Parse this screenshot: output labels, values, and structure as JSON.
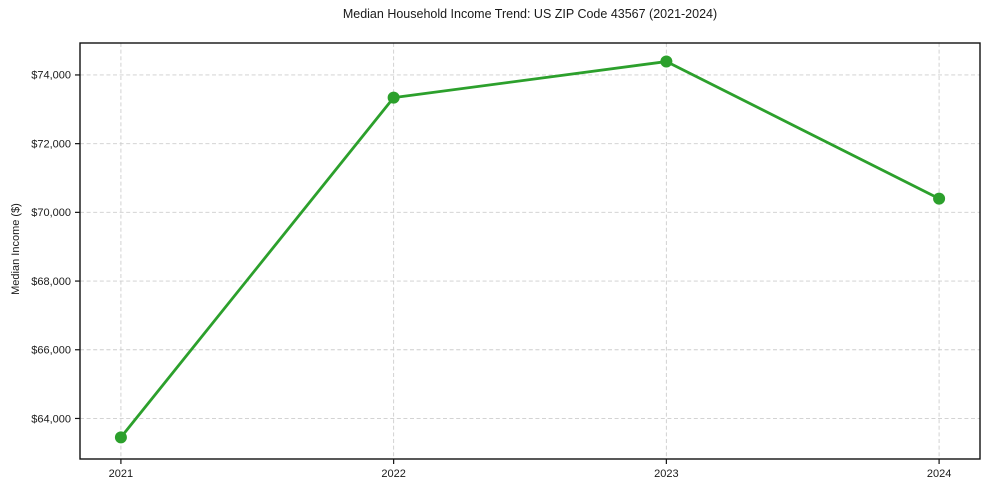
{
  "chart_data": {
    "type": "line",
    "title": "Median Household Income Trend: US ZIP Code 43567 (2021-2024)",
    "xlabel": "",
    "ylabel": "Median Income ($)",
    "categories": [
      "2021",
      "2022",
      "2023",
      "2024"
    ],
    "x_numeric": [
      2021,
      2022,
      2023,
      2024
    ],
    "series": [
      {
        "name": "Median household income",
        "values": [
          63450,
          73340,
          74390,
          70400
        ]
      }
    ],
    "yticks": [
      64000,
      66000,
      68000,
      70000,
      72000,
      74000
    ],
    "ytick_labels": [
      "$64,000",
      "$66,000",
      "$68,000",
      "$70,000",
      "$72,000",
      "$74,000"
    ],
    "ylim": [
      62820,
      74930
    ],
    "xlim": [
      2020.85,
      2024.15
    ],
    "grid": true,
    "legend_position": "none",
    "colors": {
      "line": "#2ca02c",
      "marker": "#2ca02c",
      "grid": "#cdcdcd",
      "frame": "#111111",
      "text": "#1a1a1a",
      "background": "#ffffff"
    }
  }
}
